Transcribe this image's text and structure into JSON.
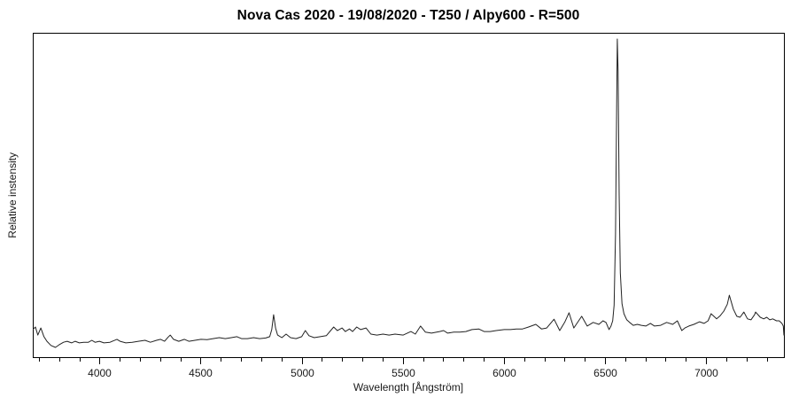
{
  "chart_data": {
    "type": "line",
    "title": "Nova Cas 2020 - 19/08/2020 - T250 / Alpy600 - R=500",
    "xlabel": "Wavelength [Ångström]",
    "ylabel": "Relative instensity",
    "x_range": [
      3670,
      7385
    ],
    "y_range": [
      0,
      1
    ],
    "x_major_ticks": [
      4000,
      4500,
      5000,
      5500,
      6000,
      6500,
      7000
    ],
    "x_minor_tick_step": 100,
    "grid": false,
    "legend": false,
    "background": "#ffffff",
    "line_color": "#222222",
    "axis_color": "#000000",
    "text_color": "#1a1a1a",
    "series": [
      {
        "name": "spectrum",
        "points": [
          [
            3670,
            0.085
          ],
          [
            3683,
            0.093
          ],
          [
            3695,
            0.068
          ],
          [
            3710,
            0.09
          ],
          [
            3725,
            0.063
          ],
          [
            3740,
            0.049
          ],
          [
            3760,
            0.036
          ],
          [
            3782,
            0.03
          ],
          [
            3800,
            0.038
          ],
          [
            3822,
            0.046
          ],
          [
            3840,
            0.049
          ],
          [
            3862,
            0.044
          ],
          [
            3880,
            0.049
          ],
          [
            3900,
            0.044
          ],
          [
            3922,
            0.046
          ],
          [
            3945,
            0.046
          ],
          [
            3962,
            0.052
          ],
          [
            3978,
            0.046
          ],
          [
            4000,
            0.049
          ],
          [
            4022,
            0.044
          ],
          [
            4052,
            0.046
          ],
          [
            4086,
            0.055
          ],
          [
            4102,
            0.049
          ],
          [
            4130,
            0.044
          ],
          [
            4162,
            0.046
          ],
          [
            4192,
            0.049
          ],
          [
            4225,
            0.052
          ],
          [
            4252,
            0.046
          ],
          [
            4282,
            0.052
          ],
          [
            4302,
            0.055
          ],
          [
            4322,
            0.049
          ],
          [
            4340,
            0.062
          ],
          [
            4350,
            0.068
          ],
          [
            4366,
            0.055
          ],
          [
            4392,
            0.049
          ],
          [
            4420,
            0.055
          ],
          [
            4442,
            0.049
          ],
          [
            4472,
            0.052
          ],
          [
            4502,
            0.055
          ],
          [
            4532,
            0.054
          ],
          [
            4562,
            0.057
          ],
          [
            4592,
            0.06
          ],
          [
            4622,
            0.057
          ],
          [
            4652,
            0.06
          ],
          [
            4680,
            0.063
          ],
          [
            4702,
            0.057
          ],
          [
            4732,
            0.057
          ],
          [
            4762,
            0.06
          ],
          [
            4792,
            0.057
          ],
          [
            4822,
            0.059
          ],
          [
            4842,
            0.063
          ],
          [
            4852,
            0.085
          ],
          [
            4861,
            0.131
          ],
          [
            4871,
            0.09
          ],
          [
            4881,
            0.068
          ],
          [
            4902,
            0.06
          ],
          [
            4923,
            0.071
          ],
          [
            4945,
            0.06
          ],
          [
            4972,
            0.057
          ],
          [
            5000,
            0.063
          ],
          [
            5018,
            0.082
          ],
          [
            5036,
            0.066
          ],
          [
            5062,
            0.06
          ],
          [
            5092,
            0.063
          ],
          [
            5122,
            0.066
          ],
          [
            5158,
            0.093
          ],
          [
            5176,
            0.082
          ],
          [
            5200,
            0.09
          ],
          [
            5216,
            0.079
          ],
          [
            5236,
            0.087
          ],
          [
            5252,
            0.079
          ],
          [
            5272,
            0.093
          ],
          [
            5292,
            0.085
          ],
          [
            5318,
            0.09
          ],
          [
            5342,
            0.071
          ],
          [
            5372,
            0.068
          ],
          [
            5402,
            0.071
          ],
          [
            5432,
            0.068
          ],
          [
            5462,
            0.071
          ],
          [
            5502,
            0.068
          ],
          [
            5540,
            0.079
          ],
          [
            5562,
            0.071
          ],
          [
            5588,
            0.096
          ],
          [
            5612,
            0.077
          ],
          [
            5642,
            0.074
          ],
          [
            5682,
            0.079
          ],
          [
            5702,
            0.082
          ],
          [
            5722,
            0.074
          ],
          [
            5752,
            0.077
          ],
          [
            5782,
            0.077
          ],
          [
            5812,
            0.079
          ],
          [
            5842,
            0.085
          ],
          [
            5876,
            0.087
          ],
          [
            5902,
            0.079
          ],
          [
            5932,
            0.079
          ],
          [
            5962,
            0.082
          ],
          [
            6002,
            0.085
          ],
          [
            6032,
            0.085
          ],
          [
            6062,
            0.087
          ],
          [
            6092,
            0.087
          ],
          [
            6122,
            0.093
          ],
          [
            6158,
            0.101
          ],
          [
            6186,
            0.087
          ],
          [
            6212,
            0.09
          ],
          [
            6248,
            0.117
          ],
          [
            6276,
            0.082
          ],
          [
            6302,
            0.109
          ],
          [
            6322,
            0.137
          ],
          [
            6346,
            0.09
          ],
          [
            6385,
            0.126
          ],
          [
            6412,
            0.096
          ],
          [
            6442,
            0.107
          ],
          [
            6470,
            0.101
          ],
          [
            6490,
            0.112
          ],
          [
            6505,
            0.107
          ],
          [
            6520,
            0.085
          ],
          [
            6530,
            0.096
          ],
          [
            6538,
            0.112
          ],
          [
            6545,
            0.16
          ],
          [
            6552,
            0.38
          ],
          [
            6557,
            0.72
          ],
          [
            6561,
            0.981
          ],
          [
            6565,
            0.88
          ],
          [
            6570,
            0.5
          ],
          [
            6576,
            0.26
          ],
          [
            6584,
            0.165
          ],
          [
            6594,
            0.134
          ],
          [
            6608,
            0.115
          ],
          [
            6622,
            0.107
          ],
          [
            6640,
            0.098
          ],
          [
            6660,
            0.101
          ],
          [
            6680,
            0.098
          ],
          [
            6702,
            0.096
          ],
          [
            6725,
            0.104
          ],
          [
            6745,
            0.096
          ],
          [
            6775,
            0.098
          ],
          [
            6805,
            0.107
          ],
          [
            6835,
            0.101
          ],
          [
            6858,
            0.112
          ],
          [
            6880,
            0.082
          ],
          [
            6895,
            0.09
          ],
          [
            6915,
            0.096
          ],
          [
            6940,
            0.101
          ],
          [
            6968,
            0.109
          ],
          [
            6990,
            0.104
          ],
          [
            7010,
            0.112
          ],
          [
            7025,
            0.134
          ],
          [
            7052,
            0.118
          ],
          [
            7070,
            0.128
          ],
          [
            7088,
            0.142
          ],
          [
            7105,
            0.163
          ],
          [
            7115,
            0.191
          ],
          [
            7135,
            0.148
          ],
          [
            7152,
            0.126
          ],
          [
            7168,
            0.123
          ],
          [
            7187,
            0.139
          ],
          [
            7205,
            0.118
          ],
          [
            7222,
            0.115
          ],
          [
            7240,
            0.131
          ],
          [
            7245,
            0.139
          ],
          [
            7268,
            0.123
          ],
          [
            7285,
            0.118
          ],
          [
            7300,
            0.123
          ],
          [
            7315,
            0.115
          ],
          [
            7330,
            0.118
          ],
          [
            7348,
            0.112
          ],
          [
            7362,
            0.112
          ],
          [
            7375,
            0.104
          ],
          [
            7382,
            0.096
          ],
          [
            7385,
            0.068
          ]
        ]
      }
    ]
  }
}
